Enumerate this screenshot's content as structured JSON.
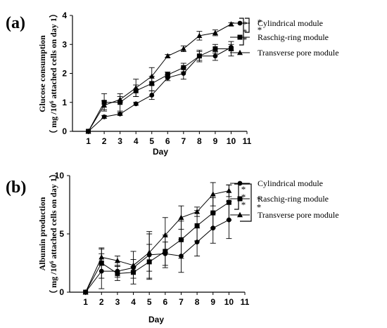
{
  "chart_data": [
    {
      "panel_label": "(a)",
      "type": "line",
      "xlabel": "Day",
      "ylabel_line1": "Glucose consumption",
      "ylabel_line2_pre": "（ mg /10",
      "ylabel_line2_sup": "6",
      "ylabel_line2_post": " attached cells on day 1）",
      "xlim": [
        0,
        11
      ],
      "ylim": [
        0,
        4
      ],
      "xticks": [
        1,
        2,
        3,
        4,
        5,
        6,
        7,
        8,
        9,
        10,
        11
      ],
      "yticks": [
        0,
        1,
        2,
        3,
        4
      ],
      "legend_position": "right",
      "x": [
        1,
        2,
        3,
        4,
        5,
        6,
        7,
        8,
        9,
        10
      ],
      "series": [
        {
          "name": "Cylindrical module",
          "marker": "circle",
          "values": [
            0,
            0.5,
            0.6,
            0.95,
            1.25,
            1.85,
            2.0,
            2.6,
            2.6,
            2.9
          ],
          "errors": [
            0,
            0.05,
            0.05,
            0.05,
            0.15,
            0.1,
            0.2,
            0.15,
            0.15,
            0.1
          ]
        },
        {
          "name": "Raschig-ring module",
          "marker": "square",
          "values": [
            0,
            1.0,
            1.0,
            1.4,
            1.65,
            1.95,
            2.2,
            2.6,
            2.85,
            2.85
          ],
          "errors": [
            0,
            0.3,
            0.3,
            0.2,
            0.25,
            0.1,
            0.15,
            0.2,
            0.15,
            0.25
          ]
        },
        {
          "name": "Transverse pore module",
          "marker": "triangle",
          "values": [
            0,
            0.9,
            1.1,
            1.5,
            1.9,
            2.6,
            2.85,
            3.3,
            3.4,
            3.7
          ],
          "errors": [
            0,
            0.15,
            0.1,
            0.3,
            0.3,
            0.05,
            0.1,
            0.15,
            0.1,
            0.05
          ]
        }
      ],
      "significance": [
        "*",
        "*",
        "*",
        "*",
        "*"
      ]
    },
    {
      "panel_label": "(b)",
      "type": "line",
      "xlabel": "Day",
      "ylabel_line1": "Albumin production",
      "ylabel_line2_pre": "（ mg /10",
      "ylabel_line2_sup": "6",
      "ylabel_line2_post": " attached cells on day 1）",
      "xlim": [
        0,
        11
      ],
      "ylim": [
        0,
        10
      ],
      "xticks": [
        1,
        2,
        3,
        4,
        5,
        6,
        7,
        8,
        9,
        10,
        11
      ],
      "yticks": [
        0,
        5,
        10
      ],
      "legend_position": "right",
      "x": [
        1,
        2,
        3,
        4,
        5,
        6,
        7,
        8,
        9,
        10
      ],
      "series": [
        {
          "name": "Cylindrical module",
          "marker": "circle",
          "values": [
            0,
            1.8,
            1.8,
            2.1,
            3.2,
            3.3,
            3.1,
            4.3,
            5.5,
            6.2
          ],
          "errors": [
            0,
            1.5,
            0.5,
            1.4,
            2.0,
            1.0,
            1.4,
            1.2,
            1.3,
            1.6
          ]
        },
        {
          "name": "Raschig-ring module",
          "marker": "square",
          "values": [
            0,
            2.5,
            1.6,
            1.7,
            2.6,
            3.5,
            4.5,
            5.7,
            6.8,
            7.7
          ],
          "errors": [
            0,
            1.3,
            0.6,
            0.5,
            1.5,
            1.4,
            1.6,
            1.3,
            1.3,
            1.5
          ]
        },
        {
          "name": "Transverse pore module",
          "marker": "triangle",
          "values": [
            0,
            3.0,
            2.7,
            2.3,
            3.4,
            4.9,
            6.4,
            6.9,
            8.4,
            8.7
          ],
          "errors": [
            0,
            0.7,
            0.4,
            0.5,
            1.6,
            1.5,
            1.0,
            0.4,
            1.0,
            0.5
          ]
        }
      ],
      "significance": [
        "*",
        "*",
        "*",
        "*",
        "*"
      ]
    }
  ]
}
